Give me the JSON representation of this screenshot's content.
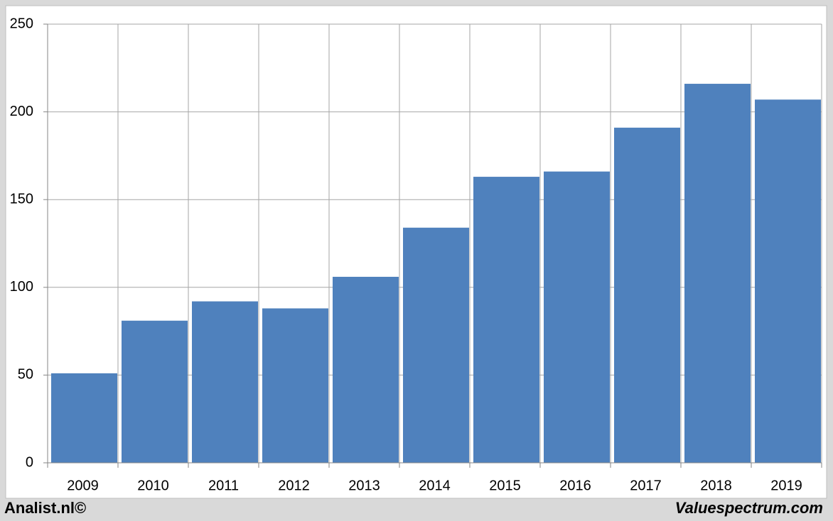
{
  "chart_data": {
    "type": "bar",
    "categories": [
      "2009",
      "2010",
      "2011",
      "2012",
      "2013",
      "2014",
      "2015",
      "2016",
      "2017",
      "2018",
      "2019"
    ],
    "values": [
      51,
      81,
      92,
      88,
      106,
      134,
      163,
      166,
      191,
      216,
      207
    ],
    "color": "#4f81bd",
    "ylim": [
      0,
      250
    ],
    "yticks": [
      0,
      50,
      100,
      150,
      200,
      250
    ],
    "grid": true,
    "footer_left": "Analist.nl©",
    "footer_right": "Valuespectrum.com"
  }
}
